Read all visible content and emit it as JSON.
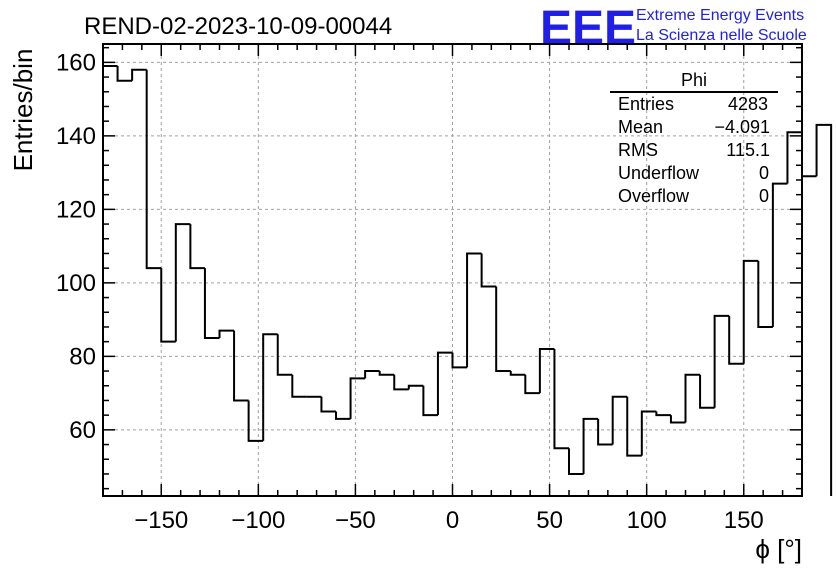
{
  "chart_data": {
    "type": "bar",
    "style": "step-histogram",
    "title": "REND-02-2023-10-09-00044",
    "xlabel": "ϕ [°]",
    "ylabel": "Entries/bin",
    "xlim": [
      -180,
      180
    ],
    "ylim": [
      42,
      165
    ],
    "grid": true,
    "x_ticks": [
      -150,
      -100,
      -50,
      0,
      50,
      100,
      150
    ],
    "x_tick_labels": [
      "−150",
      "−100",
      "−50",
      "0",
      "50",
      "100",
      "150"
    ],
    "y_ticks": [
      60,
      80,
      100,
      120,
      140,
      160
    ],
    "y_tick_labels": [
      "60",
      "80",
      "100",
      "120",
      "140",
      "160"
    ],
    "bin_edges_start": -180,
    "bin_width": 7.5,
    "values": [
      159,
      155,
      158,
      104,
      84,
      116,
      104,
      85,
      87,
      68,
      57,
      86,
      75,
      69,
      69,
      65,
      63,
      74,
      76,
      75,
      71,
      72,
      64,
      81,
      77,
      108,
      99,
      76,
      75,
      70,
      82,
      55,
      48,
      63,
      56,
      69,
      53,
      65,
      64,
      62,
      75,
      66,
      91,
      78,
      106,
      88,
      127,
      141,
      129,
      143
    ],
    "stats_box": {
      "title": "Phi",
      "entries": [
        {
          "label": "Entries",
          "value": "4283"
        },
        {
          "label": "Mean",
          "value": "−4.091"
        },
        {
          "label": "RMS",
          "value": "115.1"
        },
        {
          "label": "Underflow",
          "value": "0"
        },
        {
          "label": "Overflow",
          "value": "0"
        }
      ]
    },
    "logo": {
      "mark": "EEE",
      "line1": "Extreme Energy Events",
      "line2": "La Scienza nelle Scuole",
      "color": "#1f1fe6"
    },
    "colors": {
      "line": "#000000",
      "grid": "#a0a0a0"
    }
  }
}
